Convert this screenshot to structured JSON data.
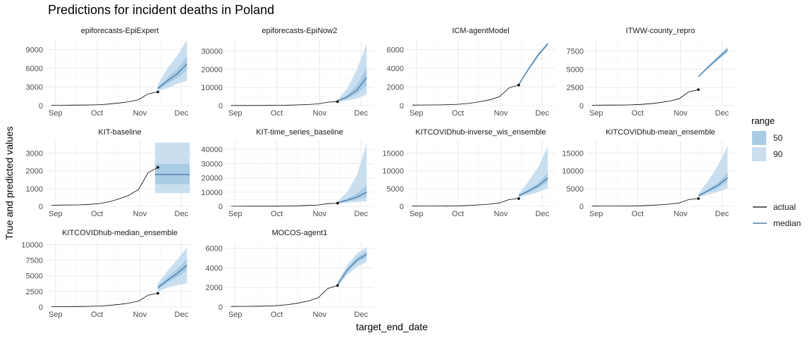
{
  "chart_data": {
    "type": "line",
    "title": "Predictions for incident deaths in Poland",
    "xlabel": "target_end_date",
    "ylabel": "True and predicted values",
    "x_ticks": [
      "Sep",
      "Oct",
      "Nov",
      "Dec"
    ],
    "grid": true,
    "legend": {
      "position": "right",
      "range_title": "range",
      "range_entries": [
        "50",
        "90"
      ],
      "line_entries": [
        "actual",
        "median"
      ]
    },
    "colors": {
      "ribbon50": "#a9cce6",
      "ribbon90": "#c9dff0",
      "median": "#4f7fab",
      "actual": "#000000",
      "grid": "#ebebeb"
    },
    "actual": {
      "dates": [
        "2020-08-29",
        "2020-09-05",
        "2020-09-12",
        "2020-09-19",
        "2020-09-26",
        "2020-10-03",
        "2020-10-10",
        "2020-10-17",
        "2020-10-24",
        "2020-10-31",
        "2020-11-07",
        "2020-11-14"
      ],
      "values": [
        60,
        70,
        75,
        85,
        110,
        160,
        260,
        420,
        620,
        950,
        1900,
        2200
      ]
    },
    "forecast_dates": [
      "2020-11-14",
      "2020-11-21",
      "2020-11-28",
      "2020-12-05"
    ],
    "panels": [
      {
        "name": "epiforecasts-EpiExpert",
        "ylim": [
          0,
          10500
        ],
        "yticks": [
          0,
          3000,
          6000,
          9000
        ],
        "ytick_labels": [
          "0",
          "3000",
          "6000",
          "9000"
        ],
        "median": [
          2750,
          4000,
          5100,
          6700
        ],
        "q25": [
          2550,
          3500,
          4400,
          5600
        ],
        "q75": [
          3000,
          4500,
          5900,
          7900
        ],
        "q05": [
          2300,
          2800,
          3500,
          4000
        ],
        "q95": [
          3400,
          6000,
          8000,
          10500
        ]
      },
      {
        "name": "epiforecasts-EpiNow2",
        "ylim": [
          0,
          36000
        ],
        "yticks": [
          0,
          10000,
          20000,
          30000
        ],
        "ytick_labels": [
          "0",
          "10000",
          "20000",
          "30000"
        ],
        "median": [
          2500,
          4800,
          8500,
          15500
        ],
        "q25": [
          2300,
          4000,
          6500,
          11000
        ],
        "q75": [
          2800,
          5800,
          11500,
          21000
        ],
        "q05": [
          2000,
          2800,
          4000,
          6000
        ],
        "q95": [
          3300,
          9500,
          20000,
          34000
        ]
      },
      {
        "name": "ICM-agentModel",
        "ylim": [
          0,
          7000
        ],
        "yticks": [
          0,
          2000,
          4000,
          6000
        ],
        "ytick_labels": [
          "0",
          "2000",
          "4000",
          "6000"
        ],
        "median": [
          2250,
          3900,
          5400,
          6600
        ],
        "q25": [
          2200,
          3800,
          5300,
          6500
        ],
        "q75": [
          2300,
          4000,
          5500,
          6700
        ],
        "q05": [
          2150,
          3750,
          5200,
          6450
        ],
        "q95": [
          2350,
          4050,
          5600,
          6800
        ]
      },
      {
        "name": "ITWW-county_repro",
        "ylim": [
          0,
          9000
        ],
        "yticks": [
          0,
          2500,
          5000,
          7500
        ],
        "ytick_labels": [
          "0",
          "2500",
          "5000",
          "7500"
        ],
        "median": [
          4000,
          5300,
          6500,
          7700
        ],
        "q25": [
          3950,
          5200,
          6350,
          7500
        ],
        "q75": [
          4050,
          5400,
          6650,
          7900
        ],
        "q05": [
          3900,
          5100,
          6200,
          7300
        ],
        "q95": [
          4100,
          5500,
          6800,
          8100
        ]
      },
      {
        "name": "KIT-baseline",
        "ylim": [
          0,
          3700
        ],
        "yticks": [
          0,
          1000,
          2000,
          3000
        ],
        "ytick_labels": [
          "0",
          "1000",
          "2000",
          "3000"
        ],
        "median": [
          1800,
          1800,
          1800,
          1800
        ],
        "q25": [
          1250,
          1250,
          1250,
          1250
        ],
        "q75": [
          2400,
          2400,
          2400,
          2400
        ],
        "q05": [
          750,
          750,
          750,
          750
        ],
        "q95": [
          3600,
          3600,
          3600,
          3600
        ]
      },
      {
        "name": "KIT-time_series_baseline",
        "ylim": [
          0,
          46000
        ],
        "yticks": [
          0,
          10000,
          20000,
          30000,
          40000
        ],
        "ytick_labels": [
          "0",
          "10000",
          "20000",
          "30000",
          "40000"
        ],
        "median": [
          2500,
          4300,
          6500,
          10000
        ],
        "q25": [
          2300,
          3500,
          4800,
          6500
        ],
        "q75": [
          2800,
          5500,
          9000,
          15000
        ],
        "q05": [
          2000,
          2500,
          3000,
          3500
        ],
        "q95": [
          3500,
          10000,
          22000,
          44000
        ]
      },
      {
        "name": "KITCOVIDhub-inverse_wis_ensemble",
        "ylim": [
          0,
          18500
        ],
        "yticks": [
          0,
          5000,
          10000,
          15000
        ],
        "ytick_labels": [
          "0",
          "5000",
          "10000",
          "15000"
        ],
        "median": [
          3000,
          4300,
          5800,
          8000
        ],
        "q25": [
          2800,
          3900,
          5100,
          6800
        ],
        "q75": [
          3200,
          4800,
          6600,
          9500
        ],
        "q05": [
          2500,
          3200,
          4000,
          5000
        ],
        "q95": [
          3600,
          7000,
          11000,
          17000
        ]
      },
      {
        "name": "KITCOVIDhub-mean_ensemble",
        "ylim": [
          0,
          18500
        ],
        "yticks": [
          0,
          5000,
          10000,
          15000
        ],
        "ytick_labels": [
          "0",
          "5000",
          "10000",
          "15000"
        ],
        "median": [
          3000,
          4400,
          5900,
          8100
        ],
        "q25": [
          2800,
          4000,
          5200,
          6900
        ],
        "q75": [
          3200,
          4900,
          6700,
          9600
        ],
        "q05": [
          2500,
          3300,
          4100,
          5000
        ],
        "q95": [
          3600,
          7200,
          11500,
          17000
        ]
      },
      {
        "name": "KITCOVIDhub-median_ensemble",
        "ylim": [
          0,
          10500
        ],
        "yticks": [
          0,
          2500,
          5000,
          7500,
          10000
        ],
        "ytick_labels": [
          "0",
          "2500",
          "5000",
          "7500",
          "10000"
        ],
        "median": [
          3100,
          4300,
          5400,
          6700
        ],
        "q25": [
          2800,
          3900,
          4800,
          5800
        ],
        "q75": [
          3400,
          4800,
          6100,
          7700
        ],
        "q05": [
          2500,
          3100,
          3500,
          3800
        ],
        "q95": [
          3800,
          5800,
          7600,
          9500
        ]
      },
      {
        "name": "MOCOS-agent1",
        "ylim": [
          0,
          6700
        ],
        "yticks": [
          0,
          2000,
          4000,
          6000
        ],
        "ytick_labels": [
          "0",
          "2000",
          "4000",
          "6000"
        ],
        "median": [
          2300,
          3800,
          4800,
          5400
        ],
        "q25": [
          2200,
          3600,
          4500,
          5100
        ],
        "q75": [
          2450,
          4000,
          5100,
          5700
        ],
        "q05": [
          2100,
          3300,
          4100,
          4600
        ],
        "q95": [
          2550,
          4300,
          5500,
          6100
        ]
      }
    ]
  }
}
